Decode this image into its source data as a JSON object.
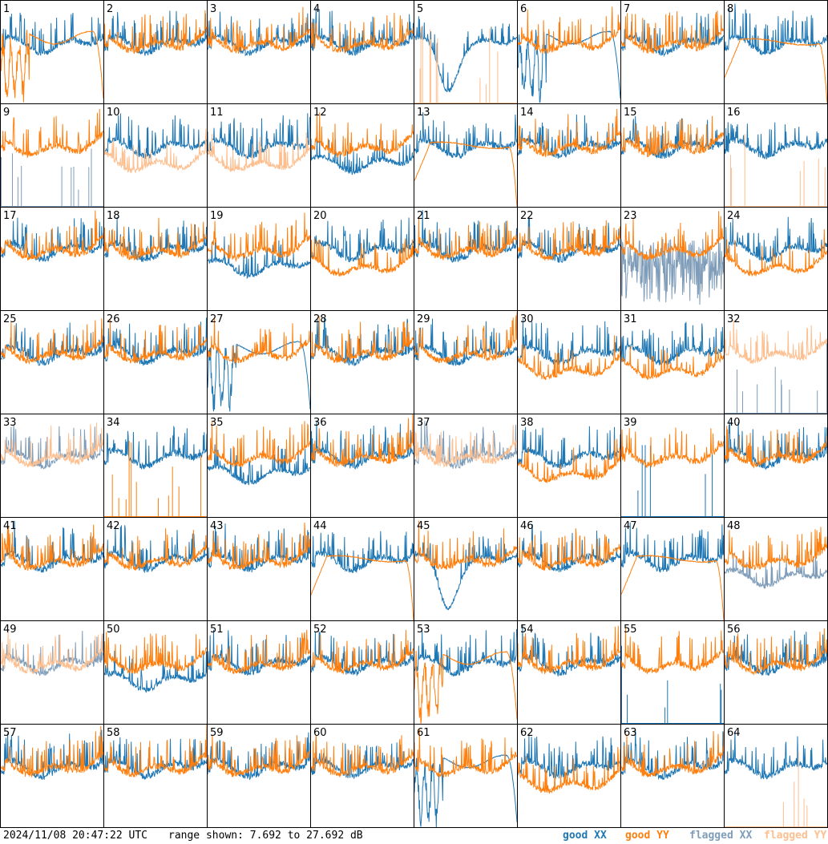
{
  "colors": {
    "good_xx": "#1f77b4",
    "good_yy": "#ff7f0e",
    "flagged_xx": "#7f9db9",
    "flagged_yy": "#fdbf8f",
    "grid": "#000000",
    "background": "#ffffff"
  },
  "footer": {
    "timestamp": "2024/11/08 20:47:22 UTC",
    "range_text": "range shown: 7.692 to 27.692 dB"
  },
  "legend": {
    "good_xx": "good XX",
    "good_yy": "good YY",
    "flagged_xx": "flagged XX",
    "flagged_yy": "flagged YY"
  },
  "chart_data": {
    "type": "line",
    "layout": "8x8 small multiples of antenna bandpass spectra",
    "ylim": [
      7.692,
      27.692
    ],
    "yunit": "dB",
    "x": "channel",
    "series_kinds": [
      "good XX",
      "good YY",
      "flagged XX",
      "flagged YY"
    ],
    "panels": [
      {
        "id": "1",
        "xx": "good",
        "yy": "good",
        "xx_shape": "normal",
        "yy_shape": "rolloff_dip"
      },
      {
        "id": "2",
        "xx": "good",
        "yy": "good",
        "xx_shape": "normal",
        "yy_shape": "normal"
      },
      {
        "id": "3",
        "xx": "good",
        "yy": "good",
        "xx_shape": "normal",
        "yy_shape": "normal"
      },
      {
        "id": "4",
        "xx": "good",
        "yy": "good",
        "xx_shape": "normal",
        "yy_shape": "normal"
      },
      {
        "id": "5",
        "xx": "good",
        "yy": "flagged",
        "xx_shape": "dip",
        "yy_shape": "spikes"
      },
      {
        "id": "6",
        "xx": "good",
        "yy": "good",
        "xx_shape": "rolloff_dip",
        "yy_shape": "normal"
      },
      {
        "id": "7",
        "xx": "good",
        "yy": "good",
        "xx_shape": "normal",
        "yy_shape": "normal"
      },
      {
        "id": "8",
        "xx": "good",
        "yy": "good",
        "xx_shape": "normal",
        "yy_shape": "rolloff_smooth"
      },
      {
        "id": "9",
        "xx": "flagged",
        "yy": "good",
        "xx_shape": "spikes",
        "yy_shape": "normal"
      },
      {
        "id": "10",
        "xx": "good",
        "yy": "flagged",
        "xx_shape": "normal",
        "yy_shape": "low"
      },
      {
        "id": "11",
        "xx": "good",
        "yy": "flagged",
        "xx_shape": "normal",
        "yy_shape": "low"
      },
      {
        "id": "12",
        "xx": "good",
        "yy": "good",
        "xx_shape": "low",
        "yy_shape": "normal"
      },
      {
        "id": "13",
        "xx": "good",
        "yy": "good",
        "xx_shape": "normal",
        "yy_shape": "rolloff_smooth"
      },
      {
        "id": "14",
        "xx": "good",
        "yy": "good",
        "xx_shape": "normal",
        "yy_shape": "normal"
      },
      {
        "id": "15",
        "xx": "good",
        "yy": "good",
        "xx_shape": "normal",
        "yy_shape": "normal"
      },
      {
        "id": "16",
        "xx": "good",
        "yy": "flagged",
        "xx_shape": "normal",
        "yy_shape": "spikes"
      },
      {
        "id": "17",
        "xx": "good",
        "yy": "good",
        "xx_shape": "normal",
        "yy_shape": "normal"
      },
      {
        "id": "18",
        "xx": "good",
        "yy": "good",
        "xx_shape": "normal",
        "yy_shape": "normal"
      },
      {
        "id": "19",
        "xx": "good",
        "yy": "good",
        "xx_shape": "low",
        "yy_shape": "normal"
      },
      {
        "id": "20",
        "xx": "good",
        "yy": "good",
        "xx_shape": "normal",
        "yy_shape": "low"
      },
      {
        "id": "21",
        "xx": "good",
        "yy": "good",
        "xx_shape": "normal",
        "yy_shape": "normal"
      },
      {
        "id": "22",
        "xx": "good",
        "yy": "good",
        "xx_shape": "normal",
        "yy_shape": "normal"
      },
      {
        "id": "23",
        "xx": "flagged",
        "yy": "good",
        "xx_shape": "noisy",
        "yy_shape": "normal"
      },
      {
        "id": "24",
        "xx": "good",
        "yy": "good",
        "xx_shape": "normal",
        "yy_shape": "low"
      },
      {
        "id": "25",
        "xx": "good",
        "yy": "good",
        "xx_shape": "normal",
        "yy_shape": "normal"
      },
      {
        "id": "26",
        "xx": "good",
        "yy": "good",
        "xx_shape": "normal",
        "yy_shape": "normal"
      },
      {
        "id": "27",
        "xx": "good",
        "yy": "good",
        "xx_shape": "rolloff_dip",
        "yy_shape": "normal"
      },
      {
        "id": "28",
        "xx": "good",
        "yy": "good",
        "xx_shape": "normal",
        "yy_shape": "normal"
      },
      {
        "id": "29",
        "xx": "good",
        "yy": "good",
        "xx_shape": "normal",
        "yy_shape": "normal"
      },
      {
        "id": "30",
        "xx": "good",
        "yy": "good",
        "xx_shape": "normal",
        "yy_shape": "low"
      },
      {
        "id": "31",
        "xx": "good",
        "yy": "good",
        "xx_shape": "normal",
        "yy_shape": "low"
      },
      {
        "id": "32",
        "xx": "flagged",
        "yy": "flagged",
        "xx_shape": "spikes",
        "yy_shape": "normal"
      },
      {
        "id": "33",
        "xx": "flagged",
        "yy": "flagged",
        "xx_shape": "normal",
        "yy_shape": "normal"
      },
      {
        "id": "34",
        "xx": "good",
        "yy": "good",
        "xx_shape": "normal",
        "yy_shape": "spikes"
      },
      {
        "id": "35",
        "xx": "good",
        "yy": "good",
        "xx_shape": "low",
        "yy_shape": "normal"
      },
      {
        "id": "36",
        "xx": "good",
        "yy": "good",
        "xx_shape": "normal",
        "yy_shape": "normal"
      },
      {
        "id": "37",
        "xx": "flagged",
        "yy": "flagged",
        "xx_shape": "normal",
        "yy_shape": "normal"
      },
      {
        "id": "38",
        "xx": "good",
        "yy": "good",
        "xx_shape": "normal",
        "yy_shape": "low"
      },
      {
        "id": "39",
        "xx": "good",
        "yy": "good",
        "xx_shape": "spikes",
        "yy_shape": "normal"
      },
      {
        "id": "40",
        "xx": "good",
        "yy": "good",
        "xx_shape": "normal",
        "yy_shape": "normal"
      },
      {
        "id": "41",
        "xx": "good",
        "yy": "good",
        "xx_shape": "normal",
        "yy_shape": "normal"
      },
      {
        "id": "42",
        "xx": "good",
        "yy": "good",
        "xx_shape": "normal",
        "yy_shape": "normal"
      },
      {
        "id": "43",
        "xx": "good",
        "yy": "good",
        "xx_shape": "normal",
        "yy_shape": "normal"
      },
      {
        "id": "44",
        "xx": "good",
        "yy": "good",
        "xx_shape": "normal",
        "yy_shape": "rolloff_smooth"
      },
      {
        "id": "45",
        "xx": "good",
        "yy": "good",
        "xx_shape": "dip",
        "yy_shape": "normal"
      },
      {
        "id": "46",
        "xx": "good",
        "yy": "good",
        "xx_shape": "normal",
        "yy_shape": "normal"
      },
      {
        "id": "47",
        "xx": "good",
        "yy": "good",
        "xx_shape": "normal",
        "yy_shape": "rolloff_smooth"
      },
      {
        "id": "48",
        "xx": "flagged",
        "yy": "good",
        "xx_shape": "low",
        "yy_shape": "normal"
      },
      {
        "id": "49",
        "xx": "flagged",
        "yy": "flagged",
        "xx_shape": "normal",
        "yy_shape": "normal"
      },
      {
        "id": "50",
        "xx": "good",
        "yy": "good",
        "xx_shape": "low",
        "yy_shape": "normal"
      },
      {
        "id": "51",
        "xx": "good",
        "yy": "good",
        "xx_shape": "normal",
        "yy_shape": "normal"
      },
      {
        "id": "52",
        "xx": "good",
        "yy": "good",
        "xx_shape": "normal",
        "yy_shape": "normal"
      },
      {
        "id": "53",
        "xx": "good",
        "yy": "good",
        "xx_shape": "normal",
        "yy_shape": "rolloff_dip"
      },
      {
        "id": "54",
        "xx": "good",
        "yy": "good",
        "xx_shape": "normal",
        "yy_shape": "normal"
      },
      {
        "id": "55",
        "xx": "good",
        "yy": "good",
        "xx_shape": "spikes",
        "yy_shape": "normal"
      },
      {
        "id": "56",
        "xx": "good",
        "yy": "good",
        "xx_shape": "normal",
        "yy_shape": "normal"
      },
      {
        "id": "57",
        "xx": "good",
        "yy": "good",
        "xx_shape": "normal",
        "yy_shape": "normal"
      },
      {
        "id": "58",
        "xx": "good",
        "yy": "good",
        "xx_shape": "normal",
        "yy_shape": "normal"
      },
      {
        "id": "59",
        "xx": "good",
        "yy": "good",
        "xx_shape": "normal",
        "yy_shape": "normal"
      },
      {
        "id": "60",
        "xx": "good",
        "yy": "good",
        "xx_shape": "normal",
        "yy_shape": "normal"
      },
      {
        "id": "61",
        "xx": "good",
        "yy": "good",
        "xx_shape": "rolloff_dip",
        "yy_shape": "normal"
      },
      {
        "id": "62",
        "xx": "good",
        "yy": "good",
        "xx_shape": "normal",
        "yy_shape": "low"
      },
      {
        "id": "63",
        "xx": "good",
        "yy": "good",
        "xx_shape": "normal",
        "yy_shape": "normal"
      },
      {
        "id": "64",
        "xx": "good",
        "yy": "flagged",
        "xx_shape": "normal",
        "yy_shape": "spikes"
      }
    ]
  }
}
